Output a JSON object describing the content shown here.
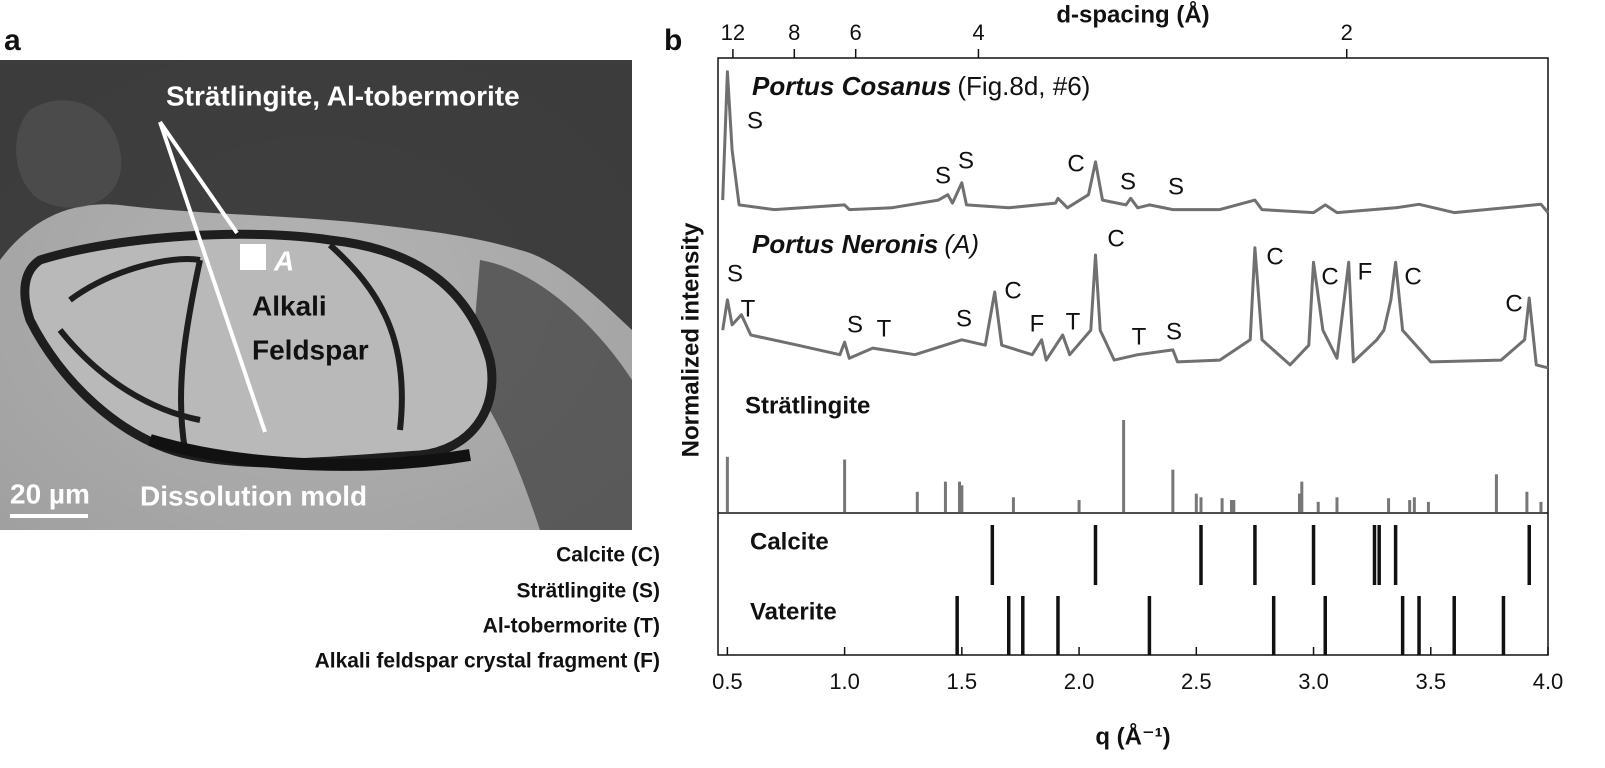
{
  "panel_a": {
    "label": "a",
    "phases_label": "Strätlingite, Al-tobermorite",
    "point_label": "A",
    "crystal_label": [
      "Alkali",
      "Feldspar"
    ],
    "mold_label": "Dissolution mold",
    "scale_bar": "20 µm"
  },
  "legend_key": [
    "Calcite (C)",
    "Strätlingite (S)",
    "Al-tobermorite (T)",
    "Alkali feldspar crystal fragment (F)"
  ],
  "chart_data": {
    "type": "line",
    "panel_label": "b",
    "x_label": "q (Å⁻¹)",
    "x2_label": "d-spacing (Å)",
    "y_label": "Normalized intensity",
    "xlim": [
      0.46,
      4.0
    ],
    "xticks": [
      0.5,
      {
        "value": 1.0,
        "label": "1.0"
      },
      1.5,
      {
        "value": 2.0,
        "label": "2.0"
      },
      2.5,
      {
        "value": 3.0,
        "label": "3.0"
      },
      3.5,
      {
        "value": 4.0,
        "label": "4.0"
      }
    ],
    "x2ticks": [
      12,
      8,
      6,
      4,
      2
    ],
    "ylim": [
      0,
      100
    ],
    "color": "#707070",
    "series": [
      {
        "name": "Portus Cosanus",
        "name_note": "(Fig.8d, #6)",
        "x": [
          0.48,
          0.5,
          0.52,
          0.55,
          0.7,
          1.0,
          1.02,
          1.2,
          1.4,
          1.44,
          1.46,
          1.5,
          1.52,
          1.7,
          1.9,
          1.91,
          1.95,
          2.04,
          2.07,
          2.1,
          2.2,
          2.22,
          2.25,
          2.3,
          2.4,
          2.6,
          2.75,
          2.78,
          3.0,
          3.05,
          3.1,
          3.35,
          3.45,
          3.6,
          3.97,
          4.0
        ],
        "values": [
          76.2,
          97.7,
          84.6,
          75.4,
          74.6,
          75.4,
          74.6,
          74.9,
          76.2,
          77.1,
          75.7,
          79.1,
          75.4,
          74.9,
          75.7,
          76.5,
          74.9,
          77.1,
          82.6,
          76.2,
          75.4,
          76.5,
          74.9,
          75.4,
          74.6,
          74.6,
          76.2,
          74.6,
          74.1,
          75.4,
          74.1,
          74.9,
          75.5,
          74.1,
          75.5,
          74.1
        ],
        "peak_labels": [
          "S",
          "S",
          "S",
          "C",
          "S",
          "S"
        ]
      },
      {
        "name": "Portus Neronis",
        "name_note": "(A)",
        "x": [
          0.48,
          0.5,
          0.52,
          0.56,
          0.6,
          0.8,
          0.98,
          1.0,
          1.02,
          1.12,
          1.3,
          1.5,
          1.6,
          1.64,
          1.67,
          1.8,
          1.84,
          1.86,
          1.93,
          1.96,
          2.05,
          2.07,
          2.09,
          2.15,
          2.25,
          2.4,
          2.42,
          2.6,
          2.73,
          2.75,
          2.78,
          2.9,
          2.98,
          3.0,
          3.04,
          3.1,
          3.15,
          3.17,
          3.27,
          3.3,
          3.33,
          3.35,
          3.38,
          3.5,
          3.8,
          3.9,
          3.92,
          3.95,
          4.0
        ],
        "values": [
          54.4,
          59.5,
          55.3,
          57.0,
          53.6,
          51.9,
          50.3,
          52.4,
          49.7,
          51.4,
          50.3,
          52.8,
          51.9,
          60.8,
          51.9,
          50.3,
          52.8,
          49.4,
          53.6,
          50.3,
          54.4,
          67.0,
          54.4,
          49.4,
          50.3,
          51.1,
          49.1,
          49.4,
          52.8,
          68.2,
          52.8,
          48.6,
          51.9,
          65.8,
          54.4,
          49.7,
          65.8,
          49.1,
          52.8,
          54.4,
          59.5,
          65.8,
          54.4,
          49.1,
          49.4,
          52.8,
          59.8,
          48.6,
          48.1
        ],
        "peak_labels": [
          "S",
          "T",
          "S",
          "T",
          "S",
          "C",
          "F",
          "T",
          "C",
          "T",
          "S",
          "C",
          "C",
          "F",
          "C",
          "C"
        ]
      }
    ],
    "references": [
      {
        "name": "Strätlingite",
        "x": [
          0.5,
          1.0,
          1.31,
          1.43,
          1.49,
          1.5,
          1.72,
          2.0,
          2.19,
          2.4,
          2.5,
          2.52,
          2.61,
          2.65,
          2.66,
          2.94,
          2.95,
          3.02,
          3.1,
          3.32,
          3.41,
          3.43,
          3.49,
          3.78,
          3.91,
          3.97
        ],
        "values": [
          60,
          57,
          22,
          33,
          33,
          29,
          16,
          13,
          100,
          46,
          20,
          16,
          15,
          13,
          13,
          20,
          33,
          11,
          16,
          15,
          13,
          16,
          11,
          41,
          22,
          11
        ]
      },
      {
        "name": "Calcite",
        "x": [
          1.63,
          2.07,
          2.52,
          2.75,
          3.0,
          3.26,
          3.28,
          3.35,
          3.92
        ],
        "values": [
          100,
          100,
          100,
          100,
          100,
          100,
          100,
          100,
          100
        ]
      },
      {
        "name": "Vaterite",
        "x": [
          1.48,
          1.7,
          1.76,
          1.91,
          2.3,
          2.83,
          3.05,
          3.38,
          3.45,
          3.6,
          3.81
        ],
        "values": [
          100,
          100,
          100,
          100,
          100,
          100,
          100,
          100,
          100,
          100,
          100
        ]
      }
    ]
  }
}
